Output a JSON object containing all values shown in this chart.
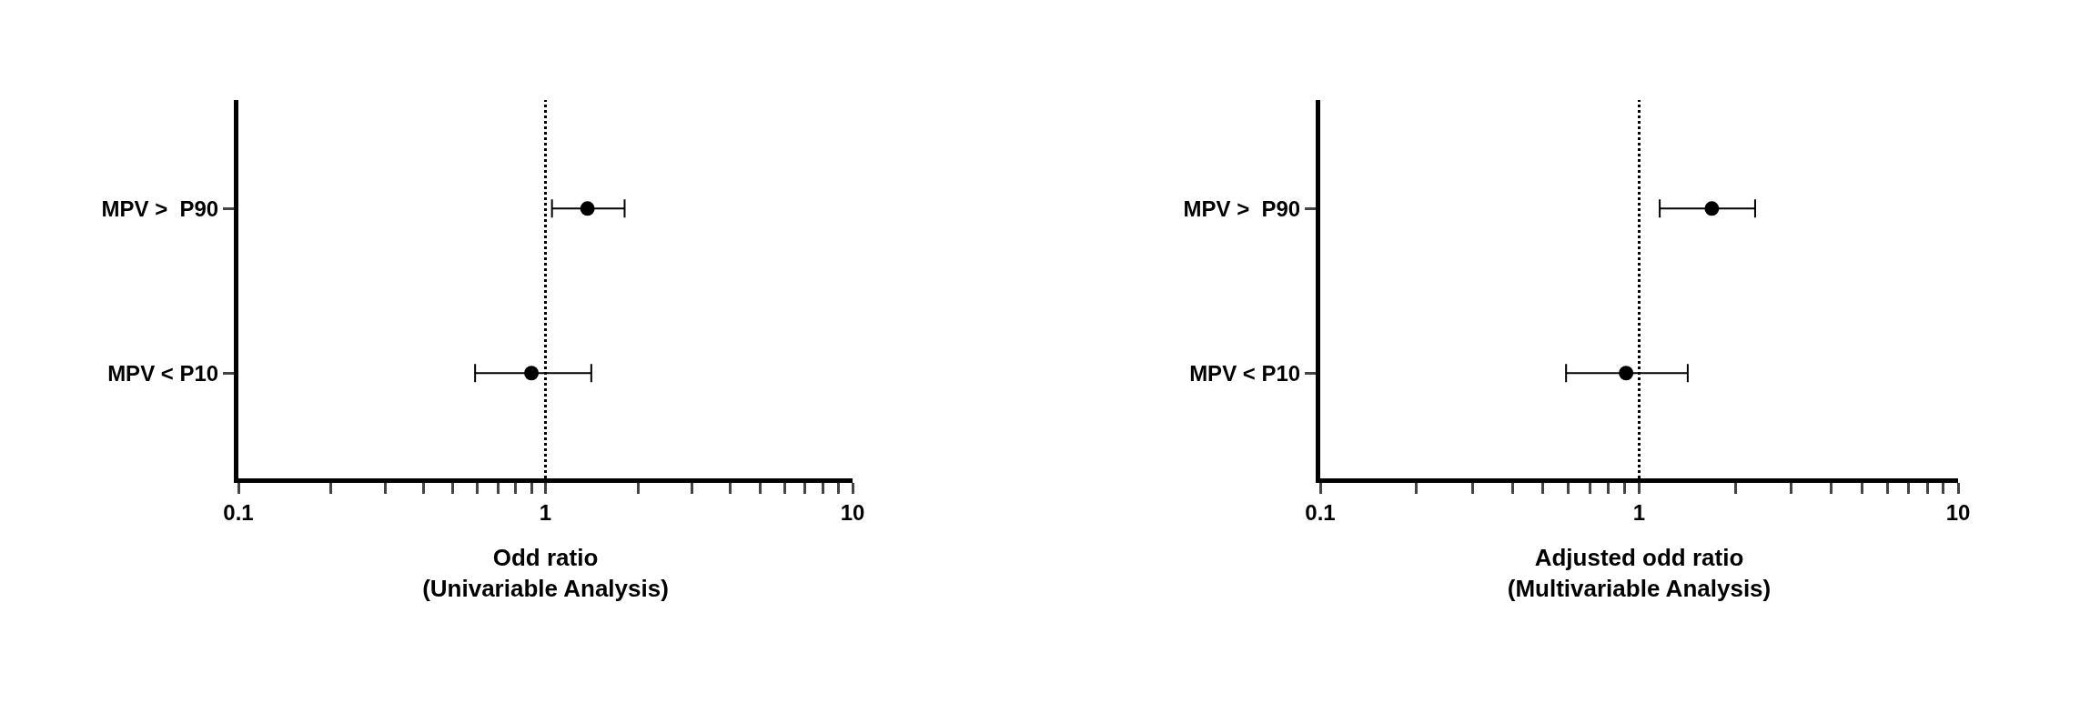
{
  "chart_data": [
    {
      "type": "scatter",
      "orientation": "horizontal",
      "categories": [
        "MPV >  P90",
        "MPV < P10"
      ],
      "values": [
        1.37,
        0.9
      ],
      "errors": [
        [
          1.05,
          1.81
        ],
        [
          0.59,
          1.41
        ]
      ],
      "color": "#000000",
      "marker": "circle",
      "log": "x",
      "xlim": [
        0.1,
        10
      ],
      "xticks": [
        0.1,
        {
          "value": 0.2,
          "label": null
        },
        {
          "value": 0.3,
          "label": null
        },
        {
          "value": 0.4,
          "label": null
        },
        {
          "value": 0.5,
          "label": null
        },
        {
          "value": 0.6,
          "label": null
        },
        {
          "value": 0.7,
          "label": null
        },
        {
          "value": 0.8,
          "label": null
        },
        {
          "value": 0.9,
          "label": null
        },
        1,
        {
          "value": 2,
          "label": null
        },
        {
          "value": 3,
          "label": null
        },
        {
          "value": 4,
          "label": null
        },
        {
          "value": 5,
          "label": null
        },
        {
          "value": 6,
          "label": null
        },
        {
          "value": 7,
          "label": null
        },
        {
          "value": 8,
          "label": null
        },
        {
          "value": 9,
          "label": null
        },
        10
      ],
      "xlabel": "Odd ratio\n(Univariable Analysis)",
      "ref_lines": [
        {
          "axis": "x",
          "value": 1,
          "line_style": "dotted",
          "color": "#000000"
        }
      ],
      "grid": false
    },
    {
      "type": "scatter",
      "orientation": "horizontal",
      "categories": [
        "MPV >  P90",
        "MPV < P10"
      ],
      "values": [
        1.69,
        0.91
      ],
      "errors": [
        [
          1.16,
          2.31
        ],
        [
          0.59,
          1.42
        ]
      ],
      "color": "#000000",
      "marker": "circle",
      "log": "x",
      "xlim": [
        0.1,
        10
      ],
      "xticks": [
        0.1,
        {
          "value": 0.2,
          "label": null
        },
        {
          "value": 0.3,
          "label": null
        },
        {
          "value": 0.4,
          "label": null
        },
        {
          "value": 0.5,
          "label": null
        },
        {
          "value": 0.6,
          "label": null
        },
        {
          "value": 0.7,
          "label": null
        },
        {
          "value": 0.8,
          "label": null
        },
        {
          "value": 0.9,
          "label": null
        },
        1,
        {
          "value": 2,
          "label": null
        },
        {
          "value": 3,
          "label": null
        },
        {
          "value": 4,
          "label": null
        },
        {
          "value": 5,
          "label": null
        },
        {
          "value": 6,
          "label": null
        },
        {
          "value": 7,
          "label": null
        },
        {
          "value": 8,
          "label": null
        },
        {
          "value": 9,
          "label": null
        },
        10
      ],
      "xlabel": "Adjusted odd ratio\n(Multivariable Analysis)",
      "ref_lines": [
        {
          "axis": "x",
          "value": 1,
          "line_style": "dotted",
          "color": "#000000"
        }
      ],
      "grid": false
    }
  ]
}
